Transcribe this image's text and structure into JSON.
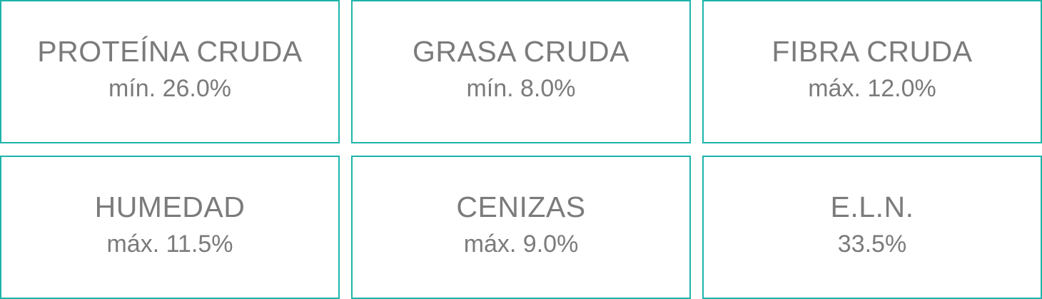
{
  "border_color": "#1cb4ab",
  "text_color": "#7b7b7c",
  "items": [
    {
      "name": "PROTEÍNA CRUDA",
      "value": "mín. 26.0%"
    },
    {
      "name": "GRASA CRUDA",
      "value": "mín. 8.0%"
    },
    {
      "name": "FIBRA CRUDA",
      "value": "máx. 12.0%"
    },
    {
      "name": "HUMEDAD",
      "value": "máx. 11.5%"
    },
    {
      "name": "CENIZAS",
      "value": "máx. 9.0%"
    },
    {
      "name": "E.L.N.",
      "value": "33.5%"
    }
  ]
}
